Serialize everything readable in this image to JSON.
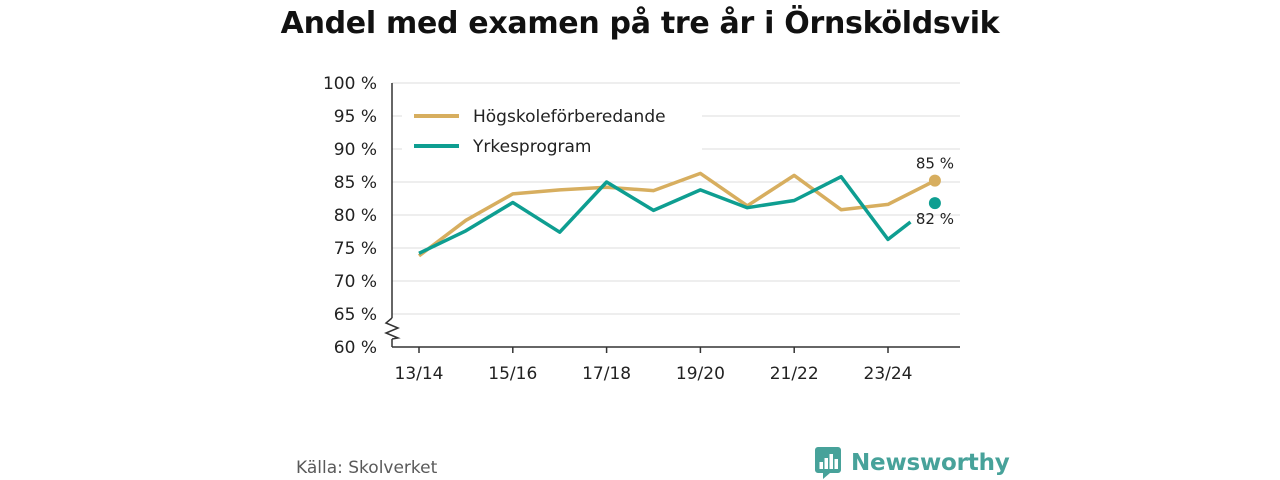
{
  "title": "Andel med examen på tre år i Örnsköldsvik",
  "source": "Källa: Skolverket",
  "brand": {
    "name": "Newsworthy",
    "icon": "bar-chart-speech-bubble-icon",
    "color": "#47a29a"
  },
  "chart_data": {
    "type": "line",
    "title": "Andel med examen på tre år i Örnsköldsvik",
    "xlabel": "",
    "ylabel": "",
    "categories": [
      "13/14",
      "14/15",
      "15/16",
      "16/17",
      "17/18",
      "18/19",
      "19/20",
      "20/21",
      "21/22",
      "22/23",
      "23/24",
      "24/25"
    ],
    "x_tick_labels": [
      "13/14",
      "15/16",
      "17/18",
      "19/20",
      "21/22",
      "23/24"
    ],
    "y_ticks": [
      60,
      65,
      70,
      75,
      80,
      85,
      90,
      95,
      100
    ],
    "y_tick_labels": [
      "60 %",
      "65 %",
      "70 %",
      "75 %",
      "80 %",
      "85 %",
      "90 %",
      "95 %",
      "100 %"
    ],
    "ylim": [
      60,
      100
    ],
    "y_axis_break": true,
    "grid": true,
    "legend_position": "top-left",
    "series": [
      {
        "name": "Högskoleförberedande",
        "color": "#d7ae5f",
        "values": [
          73.8,
          79.2,
          83.2,
          83.8,
          84.2,
          83.7,
          86.3,
          81.4,
          86.0,
          80.8,
          81.6,
          85.2
        ],
        "end_label": "85 %"
      },
      {
        "name": "Yrkesprogram",
        "color": "#0e9e91",
        "values": [
          74.2,
          77.6,
          81.9,
          77.4,
          85.0,
          80.7,
          83.8,
          81.1,
          82.2,
          85.8,
          76.3,
          81.8
        ],
        "end_label": "82 %",
        "gap_before_last": true
      }
    ]
  }
}
